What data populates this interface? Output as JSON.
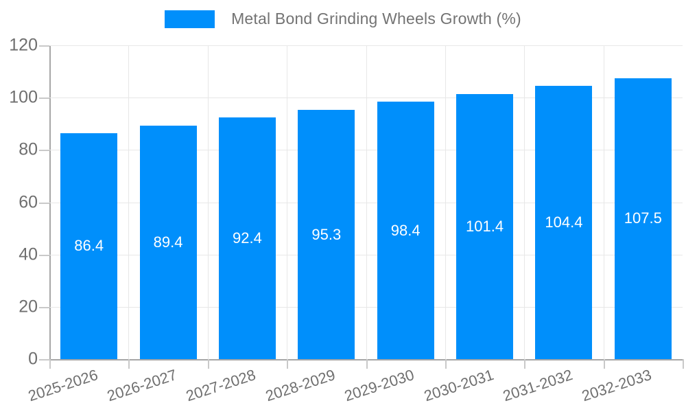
{
  "legend": {
    "label": "Metal Bond Grinding Wheels Growth (%)"
  },
  "colors": {
    "bar": "#008FFB",
    "grid": "#e7e7e7",
    "axis_line": "#a6a6a6",
    "tick": "#c9c9c9",
    "axis_text": "#6f6f6f",
    "value_text": "#ffffff"
  },
  "chart_data": {
    "type": "bar",
    "title": "",
    "xlabel": "",
    "ylabel": "",
    "categories": [
      "2025-2026",
      "2026-2027",
      "2027-2028",
      "2028-2029",
      "2029-2030",
      "2030-2031",
      "2031-2032",
      "2032-2033"
    ],
    "series": [
      {
        "name": "Metal Bond Grinding Wheels Growth (%)",
        "values": [
          86.4,
          89.4,
          92.4,
          95.3,
          98.4,
          101.4,
          104.4,
          107.5
        ],
        "color": "#008FFB"
      }
    ],
    "data_labels": [
      "86.4",
      "89.4",
      "92.4",
      "95.3",
      "98.4",
      "101.4",
      "104.4",
      "107.5"
    ],
    "ylim": [
      0,
      120
    ],
    "ytick_step": 20,
    "ytick_labels": [
      "0",
      "20",
      "40",
      "60",
      "80",
      "100",
      "120"
    ],
    "grid": true,
    "legend_position": "top"
  }
}
